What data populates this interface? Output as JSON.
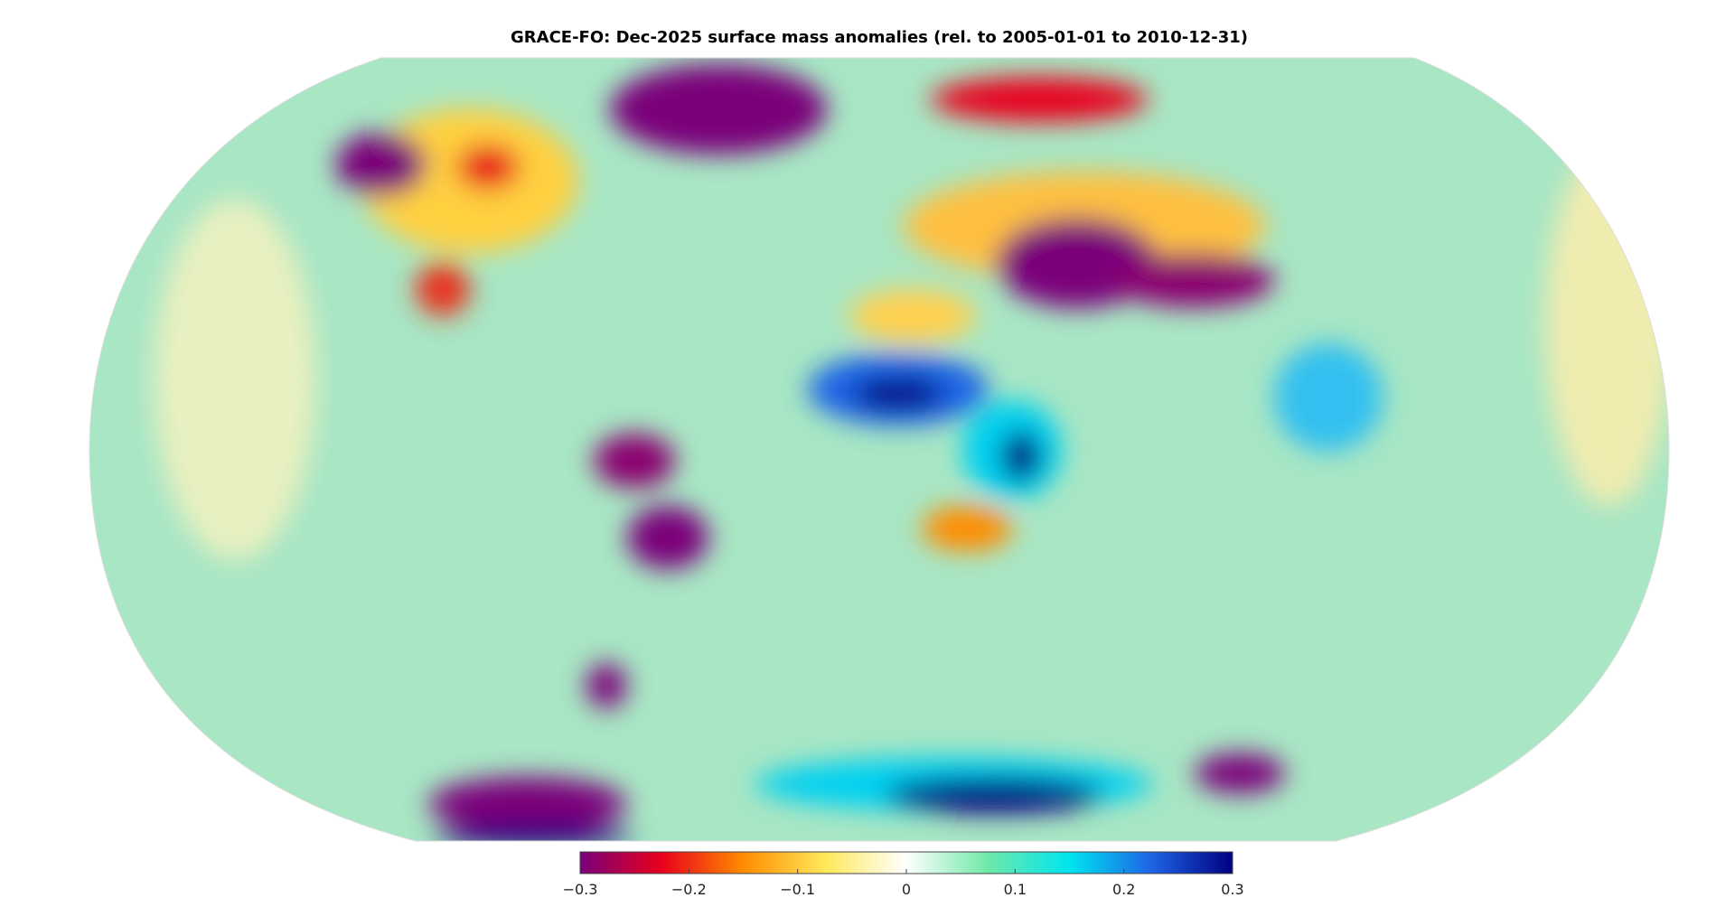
{
  "title": "GRACE-FO: Dec-2025 surface mass anomalies (rel. to 2005-01-01 to 2010-12-31)",
  "colorbar": {
    "lim": [
      -0.3,
      0.3
    ],
    "colors": [
      "#7a007a",
      "#e8001c",
      "#ff8c00",
      "#ffe85a",
      "#ffffff",
      "#6fe8a8",
      "#00e5f0",
      "#1e64e6",
      "#000080"
    ],
    "ticks": [
      {
        "value": -0.3,
        "label": "−0.3"
      },
      {
        "value": -0.2,
        "label": "−0.2"
      },
      {
        "value": -0.1,
        "label": "−0.1"
      },
      0,
      0.1,
      0.2,
      0.3
    ]
  }
}
